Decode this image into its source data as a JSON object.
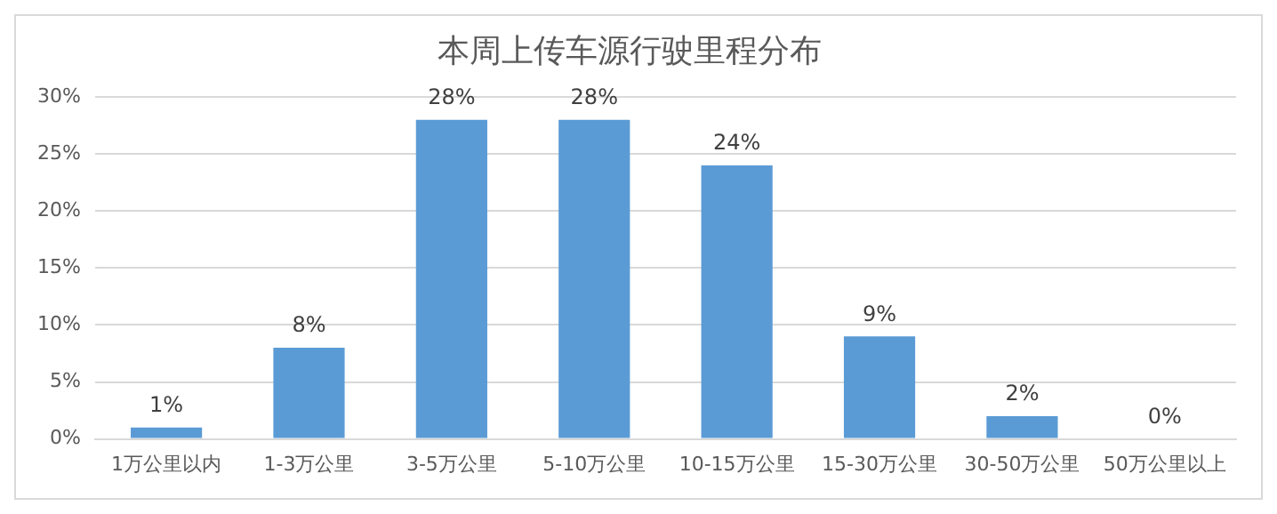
{
  "chart_data": {
    "type": "bar",
    "title": "本周上传车源行驶里程分布",
    "categories": [
      "1万公里以内",
      "1-3万公里",
      "3-5万公里",
      "5-10万公里",
      "10-15万公里",
      "15-30万公里",
      "30-50万公里",
      "50万公里以上"
    ],
    "values": [
      1,
      8,
      28,
      28,
      24,
      9,
      2,
      0
    ],
    "value_labels": [
      "1%",
      "8%",
      "28%",
      "28%",
      "24%",
      "9%",
      "2%",
      "0%"
    ],
    "color": "#5b9bd5",
    "ylim": [
      0,
      30
    ],
    "yticks": [
      {
        "value": 0,
        "label": "0%"
      },
      {
        "value": 5,
        "label": "5%"
      },
      {
        "value": 10,
        "label": "10%"
      },
      {
        "value": 15,
        "label": "15%"
      },
      {
        "value": 20,
        "label": "20%"
      },
      {
        "value": 25,
        "label": "25%"
      },
      {
        "value": 30,
        "label": "30%"
      }
    ],
    "grid": "y",
    "legend": false
  }
}
